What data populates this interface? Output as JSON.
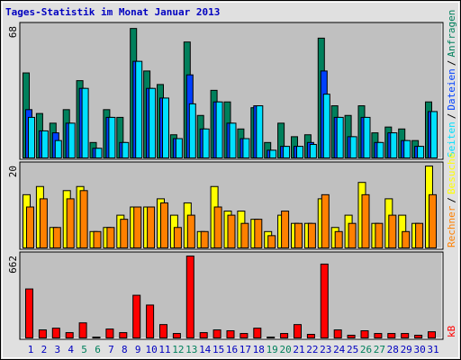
{
  "chart_data": [
    {
      "type": "bar",
      "title": "Tages-Statistik im Monat Januar 2013",
      "title_color": "#0000c0",
      "ylim": [
        0,
        68
      ],
      "yticks": [
        68
      ],
      "legend_separator": "/",
      "series": [
        {
          "name": "Anfragen",
          "color": "#00805c",
          "values": [
            44,
            23,
            18,
            25,
            40,
            8,
            25,
            21,
            67,
            45,
            38,
            12,
            60,
            22,
            35,
            29,
            15,
            26,
            8,
            18,
            11,
            12,
            62,
            27,
            22,
            27,
            13,
            16,
            15,
            9,
            29
          ]
        },
        {
          "name": "Dateien",
          "color": "#0040ff",
          "values": [
            25,
            14,
            13,
            18,
            36,
            5,
            21,
            8,
            50,
            36,
            31,
            10,
            43,
            15,
            29,
            18,
            10,
            27,
            4,
            6,
            6,
            8,
            45,
            21,
            11,
            21,
            8,
            13,
            9,
            6,
            24
          ]
        },
        {
          "name": "Seiten",
          "color": "#00e0ff",
          "values": [
            21,
            14,
            9,
            18,
            36,
            5,
            21,
            8,
            50,
            36,
            31,
            10,
            28,
            15,
            29,
            18,
            10,
            27,
            4,
            6,
            6,
            7,
            33,
            21,
            11,
            21,
            8,
            13,
            9,
            6,
            24
          ]
        }
      ]
    },
    {
      "type": "bar",
      "ylim": [
        0,
        20
      ],
      "yticks": [
        20
      ],
      "legend_separator": "/",
      "series": [
        {
          "name": "Besuche",
          "color": "#ffff00",
          "values": [
            13,
            15,
            5,
            14,
            15,
            4,
            5,
            8,
            10,
            10,
            12,
            8,
            11,
            4,
            15,
            9,
            9,
            7,
            4,
            8,
            6,
            6,
            12,
            5,
            8,
            16,
            6,
            12,
            8,
            6,
            20
          ]
        },
        {
          "name": "Rechner",
          "color": "#ff8000",
          "values": [
            10,
            12,
            5,
            12,
            14,
            4,
            5,
            7,
            10,
            10,
            11,
            5,
            8,
            4,
            10,
            8,
            6,
            7,
            3,
            9,
            6,
            6,
            13,
            4,
            6,
            13,
            6,
            8,
            4,
            6,
            13
          ]
        }
      ]
    },
    {
      "type": "bar",
      "ylim": [
        0,
        662
      ],
      "yticks": [
        662
      ],
      "categories": [
        "1",
        "2",
        "3",
        "4",
        "5",
        "6",
        "7",
        "8",
        "9",
        "10",
        "11",
        "12",
        "13",
        "14",
        "15",
        "16",
        "17",
        "18",
        "19",
        "20",
        "21",
        "22",
        "23",
        "24",
        "25",
        "26",
        "27",
        "28",
        "29",
        "30",
        "31"
      ],
      "category_colors": [
        "#0000c0",
        "#0000c0",
        "#0000c0",
        "#0000c0",
        "#00805c",
        "#00805c",
        "#0000c0",
        "#0000c0",
        "#0000c0",
        "#0000c0",
        "#0000c0",
        "#00805c",
        "#00805c",
        "#0000c0",
        "#0000c0",
        "#0000c0",
        "#0000c0",
        "#0000c0",
        "#00805c",
        "#00805c",
        "#0000c0",
        "#0000c0",
        "#0000c0",
        "#0000c0",
        "#0000c0",
        "#00805c",
        "#00805c",
        "#0000c0",
        "#0000c0",
        "#0000c0",
        "#0000c0"
      ],
      "series": [
        {
          "name": "kB",
          "color": "#ff0000",
          "values": [
            396,
            65,
            79,
            43,
            122,
            7,
            72,
            43,
            345,
            266,
            108,
            36,
            662,
            43,
            65,
            58,
            36,
            79,
            7,
            36,
            108,
            29,
            597,
            65,
            22,
            58,
            36,
            36,
            36,
            22,
            50
          ]
        }
      ]
    }
  ]
}
